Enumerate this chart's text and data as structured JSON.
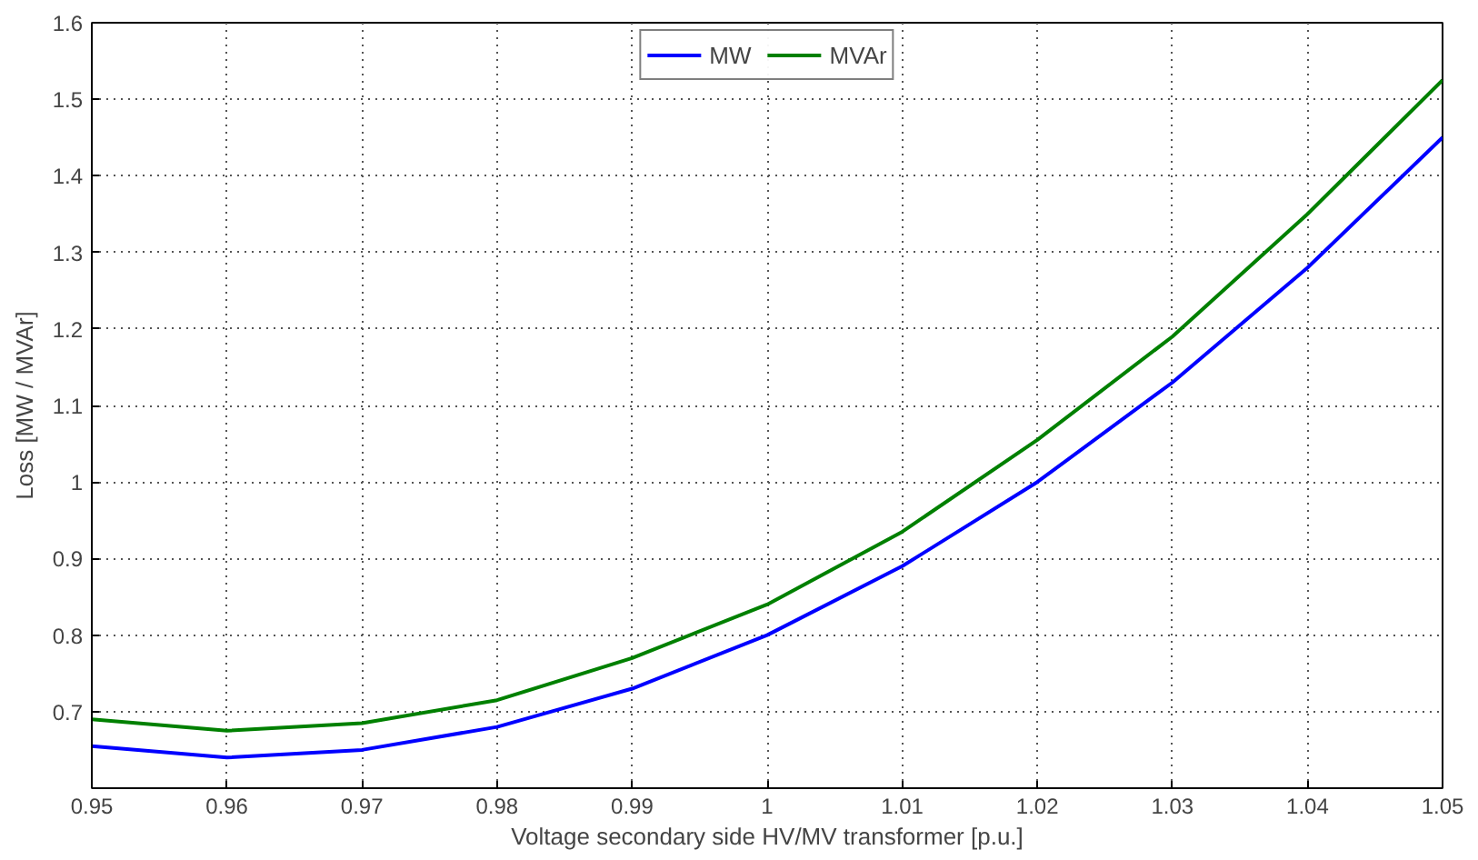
{
  "chart_data": {
    "type": "line",
    "xlabel": "Voltage secondary side HV/MV transformer [p.u.]",
    "ylabel": "Loss [MW / MVAr]",
    "x": [
      0.95,
      0.96,
      0.97,
      0.98,
      0.99,
      1,
      1.01,
      1.02,
      1.03,
      1.04,
      1.05
    ],
    "series": [
      {
        "name": "MW",
        "color": "#0000ff",
        "values": [
          0.655,
          0.64,
          0.65,
          0.68,
          0.73,
          0.8,
          0.89,
          1.0,
          1.13,
          1.28,
          1.45
        ]
      },
      {
        "name": "MVAr",
        "color": "#008000",
        "values": [
          0.69,
          0.675,
          0.685,
          0.715,
          0.77,
          0.84,
          0.935,
          1.055,
          1.19,
          1.35,
          1.525
        ]
      }
    ],
    "xlim": [
      0.95,
      1.05
    ],
    "xticks": [
      0.95,
      0.96,
      0.97,
      0.98,
      0.99,
      1,
      1.01,
      1.02,
      1.03,
      1.04,
      1.05
    ],
    "ylim": [
      0.6,
      1.6
    ],
    "yticks": [
      0.7,
      0.8,
      0.9,
      1,
      1.1,
      1.2,
      1.3,
      1.4,
      1.5,
      1.6
    ],
    "grid": true,
    "legend": "top",
    "line_style": "solid",
    "marker": "none"
  }
}
